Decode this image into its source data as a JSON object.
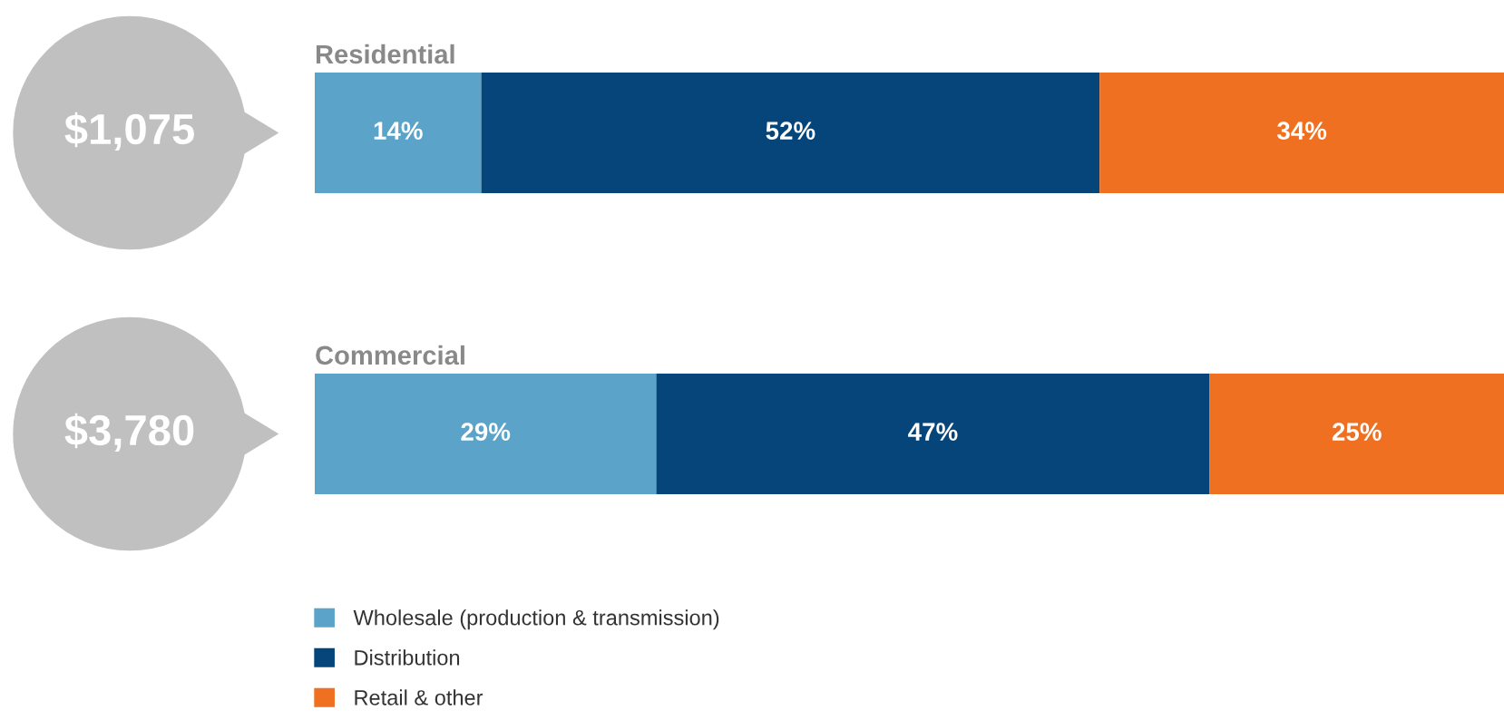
{
  "chart_data": [
    {
      "type": "bar",
      "orientation": "horizontal",
      "stacked": true,
      "categories": [
        "Residential"
      ],
      "xlim": [
        0,
        100
      ],
      "legend": false,
      "annotations": [
        "$1,075"
      ],
      "series": [
        {
          "color": "#5ba3c9",
          "values": [
            14
          ],
          "value_labels": [
            "14%"
          ]
        },
        {
          "color": "#064579",
          "values": [
            52
          ],
          "value_labels": [
            "52%"
          ]
        },
        {
          "color": "#f07022",
          "values": [
            34
          ],
          "value_labels": [
            "34%"
          ]
        }
      ]
    },
    {
      "type": "bar",
      "orientation": "horizontal",
      "stacked": true,
      "categories": [
        "Commercial"
      ],
      "xlim": [
        0,
        101
      ],
      "legend": "bottom left",
      "annotations": [
        "$3,780"
      ],
      "series": [
        {
          "name": "Wholesale (production & transmission)",
          "color": "#5ba3c9",
          "values": [
            29
          ],
          "value_labels": [
            "29%"
          ]
        },
        {
          "name": "Distribution",
          "color": "#064579",
          "values": [
            47
          ],
          "value_labels": [
            "47%"
          ]
        },
        {
          "name": "Retail & other",
          "color": "#f07022",
          "values": [
            25
          ],
          "value_labels": [
            "25%"
          ]
        }
      ]
    }
  ]
}
